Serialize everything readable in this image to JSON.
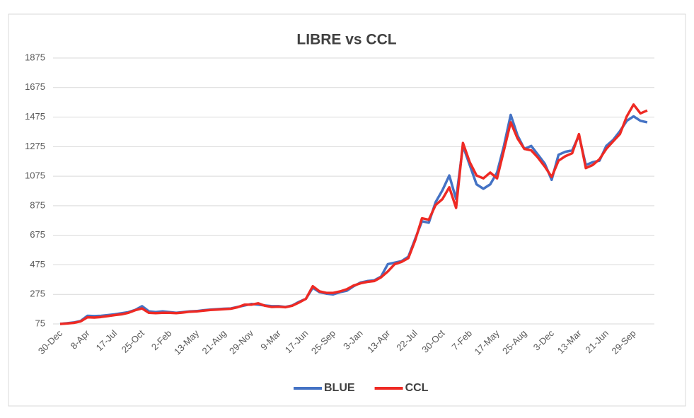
{
  "chart_data": {
    "type": "line",
    "title": "LIBRE vs CCL",
    "categories": [
      "30-Dec",
      null,
      null,
      null,
      "8-Apr",
      null,
      null,
      null,
      "17-Jul",
      null,
      null,
      null,
      "25-Oct",
      null,
      null,
      null,
      "2-Feb",
      null,
      null,
      null,
      "13-May",
      null,
      null,
      null,
      "21-Aug",
      null,
      null,
      null,
      "29-Nov",
      null,
      null,
      null,
      "9-Mar",
      null,
      null,
      null,
      "17-Jun",
      null,
      null,
      null,
      "25-Sep",
      null,
      null,
      null,
      "3-Jan",
      null,
      null,
      null,
      "13-Apr",
      null,
      null,
      null,
      "22-Jul",
      null,
      null,
      null,
      "30-Oct",
      null,
      null,
      null,
      "7-Feb",
      null,
      null,
      null,
      "17-May",
      null,
      null,
      null,
      "25-Aug",
      null,
      null,
      null,
      "3-Dec",
      null,
      null,
      null,
      "13-Mar",
      null,
      null,
      null,
      "21-Jun",
      null,
      null,
      null,
      "29-Sep",
      null,
      null
    ],
    "series": [
      {
        "name": "BLUE",
        "color": "#4472c4",
        "values": [
          75,
          80,
          85,
          95,
          130,
          128,
          130,
          135,
          140,
          148,
          155,
          170,
          195,
          160,
          155,
          160,
          155,
          150,
          155,
          160,
          162,
          168,
          172,
          175,
          178,
          180,
          190,
          200,
          210,
          205,
          200,
          195,
          195,
          190,
          200,
          225,
          245,
          320,
          290,
          280,
          275,
          290,
          300,
          330,
          355,
          365,
          370,
          395,
          480,
          490,
          500,
          530,
          650,
          770,
          760,
          900,
          980,
          1080,
          920,
          1280,
          1150,
          1020,
          990,
          1020,
          1100,
          1280,
          1490,
          1350,
          1260,
          1280,
          1220,
          1160,
          1050,
          1220,
          1240,
          1250,
          1350,
          1150,
          1170,
          1180,
          1280,
          1320,
          1380,
          1450,
          1480,
          1450,
          1440
        ]
      },
      {
        "name": "CCL",
        "color": "#ee2a24",
        "values": [
          75,
          78,
          82,
          92,
          120,
          118,
          122,
          128,
          135,
          140,
          150,
          168,
          180,
          150,
          148,
          150,
          150,
          148,
          152,
          158,
          160,
          165,
          170,
          172,
          175,
          178,
          188,
          205,
          205,
          215,
          198,
          190,
          192,
          188,
          198,
          220,
          245,
          330,
          295,
          285,
          285,
          295,
          310,
          335,
          350,
          360,
          365,
          390,
          430,
          480,
          495,
          520,
          640,
          790,
          780,
          880,
          920,
          1000,
          860,
          1300,
          1170,
          1080,
          1060,
          1100,
          1060,
          1250,
          1440,
          1330,
          1260,
          1250,
          1200,
          1140,
          1070,
          1180,
          1210,
          1230,
          1360,
          1130,
          1150,
          1190,
          1260,
          1310,
          1360,
          1480,
          1560,
          1500,
          1520
        ]
      }
    ],
    "ylim": [
      75,
      1875
    ],
    "yticks": [
      75,
      275,
      475,
      675,
      875,
      1075,
      1275,
      1475,
      1675,
      1875
    ],
    "grid": true,
    "legend": "bottom"
  }
}
